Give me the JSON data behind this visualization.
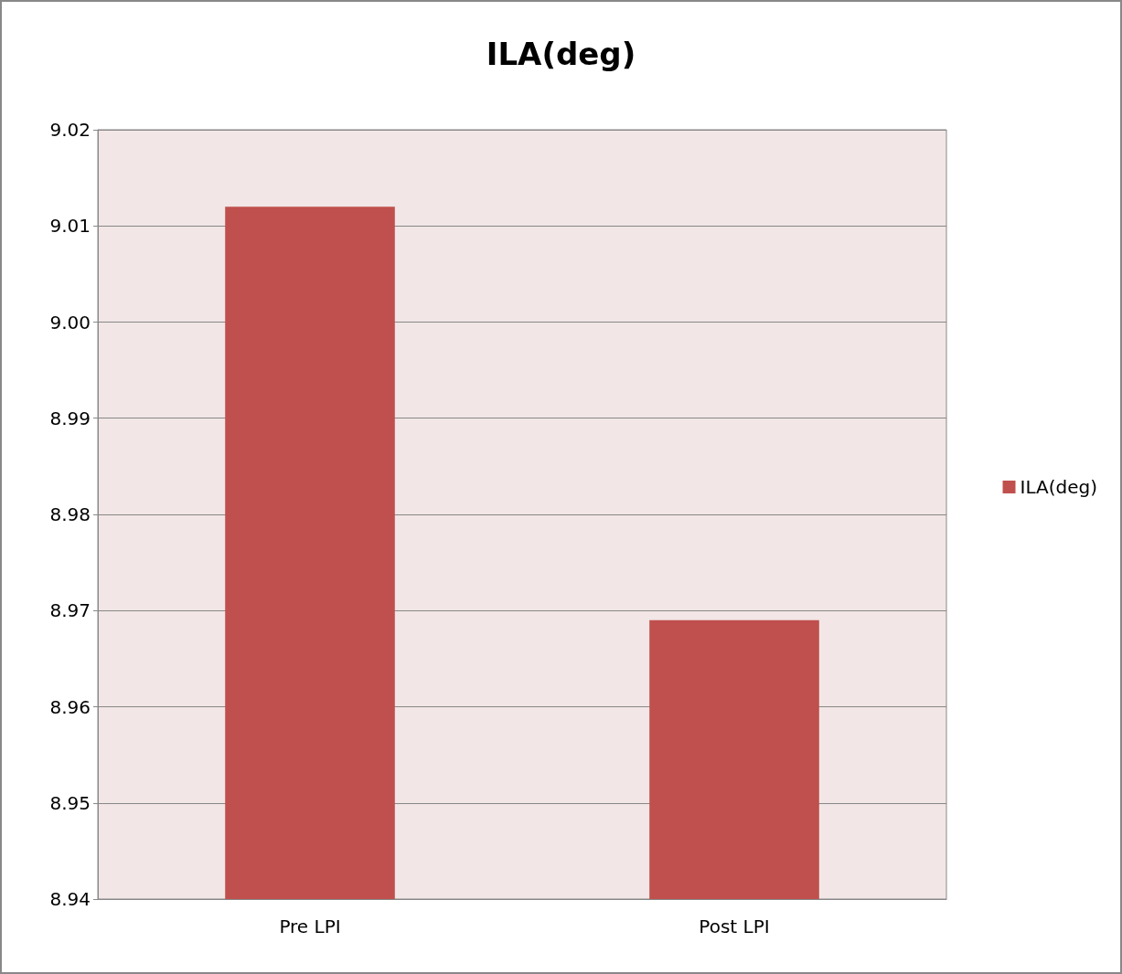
{
  "chart_data": {
    "type": "bar",
    "title": "ILA(deg)",
    "categories": [
      "Pre LPI",
      "Post LPI"
    ],
    "series": [
      {
        "name": "ILA(deg)",
        "color": "#c0504d",
        "values": [
          9.012,
          8.969
        ]
      }
    ],
    "ylim": [
      8.94,
      9.02
    ],
    "yticks": [
      8.94,
      8.95,
      8.96,
      8.97,
      8.98,
      8.99,
      {
        "value": 9.0,
        "label": "9.00"
      },
      9.01,
      9.02
    ],
    "grid": "y",
    "legend": "right"
  }
}
